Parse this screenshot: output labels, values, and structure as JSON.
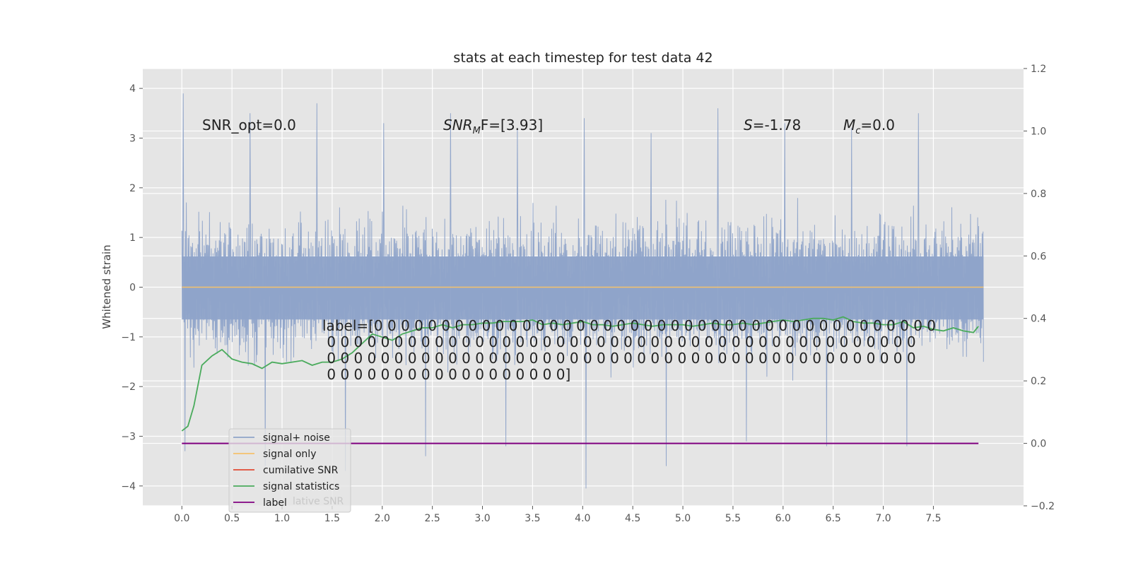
{
  "chart_data": {
    "type": "line",
    "title": "stats at each timestep for test data 42",
    "xlabel": "",
    "ylabel": "Whitened strain",
    "y2label": "",
    "xlim": [
      -0.39,
      8.4
    ],
    "ylim": [
      -4.4,
      4.4
    ],
    "y2lim": [
      -0.2,
      1.2
    ],
    "x_ticks": [
      "0.0",
      "0.5",
      "1.0",
      "1.5",
      "2.0",
      "2.5",
      "3.0",
      "3.5",
      "4.0",
      "4.5",
      "5.0",
      "5.5",
      "6.0",
      "6.5",
      "7.0",
      "7.5"
    ],
    "y_ticks": [
      "−4",
      "−3",
      "−2",
      "−1",
      "0",
      "1",
      "2",
      "3",
      "4"
    ],
    "y2_ticks": [
      "−0.2",
      "0.0",
      "0.2",
      "0.4",
      "0.6",
      "0.8",
      "1.0",
      "1.2"
    ],
    "grid": true,
    "legend_position": "lower-left",
    "colors": {
      "plot_bg": "#e5e5e5",
      "grid": "#ffffff",
      "noise": "#8ea3c9",
      "signal": "#f5c16c",
      "snr": "#e24a33",
      "stats": "#4aab5c",
      "label": "#800080"
    },
    "annotations": {
      "snr_opt": "SNR_opt=0.0",
      "snr_mf_base": "SNR",
      "snr_mf_sub": "M",
      "snr_mf_rest": "F=[3.93]",
      "s_italic": "S",
      "s_value": "=-1.78",
      "mc_base": "M",
      "mc_sub": "c",
      "mc_value": "=0.0",
      "label_lines": [
        "label=[0 0 0 0 0 0 0 0 0 0 0 0 0 0 0 0 0 0 0 0 0 0 0 0 0 0 0 0 0 0 0 0 0 0 0 0 0 0 0 0 0 0",
        " 0 0 0 0 0 0 0 0 0 0 0 0 0 0 0 0 0 0 0 0 0 0 0 0 0 0 0 0 0 0 0 0 0 0 0 0 0 0 0 0 0 0 0 0",
        " 0 0 0 0 0 0 0 0 0 0 0 0 0 0 0 0 0 0 0 0 0 0 0 0 0 0 0 0 0 0 0 0 0 0 0 0 0 0 0 0 0 0 0 0",
        " 0 0 0 0 0 0 0 0 0 0 0 0 0 0 0 0 0 0]"
      ]
    },
    "legend": [
      {
        "label": "signal+ noise",
        "color": "#8ea3c9"
      },
      {
        "label": "signal only",
        "color": "#f5c16c"
      },
      {
        "label": "cumilative SNR",
        "color": "#e24a33"
      },
      {
        "label": "signal statistics",
        "color": "#4aab5c"
      },
      {
        "label": "label",
        "color": "#800080"
      }
    ],
    "legend_ghost_text": "lative SNR",
    "series": [
      {
        "name": "signal+ noise",
        "axis": "left",
        "x_start": 0.0,
        "x_end": 8.0,
        "band_min": -2.0,
        "band_max": 1.9,
        "peak_values": [
          3.9,
          3.5,
          3.7,
          3.3,
          3.5,
          3.2,
          3.4,
          3.1,
          3.6,
          3.3,
          3.2,
          3.5
        ],
        "trough_values": [
          -3.3,
          -3.6,
          -3.7,
          -3.4,
          -3.2,
          -4.05,
          -3.6,
          -3.1,
          -3.2,
          -3.2
        ]
      },
      {
        "name": "signal only",
        "axis": "left",
        "x": [
          0.0,
          8.0
        ],
        "y": [
          0.0,
          0.0
        ]
      },
      {
        "name": "signal statistics",
        "axis": "right",
        "x": [
          0.0,
          0.06,
          0.12,
          0.2,
          0.3,
          0.4,
          0.5,
          0.6,
          0.7,
          0.8,
          0.9,
          1.0,
          1.1,
          1.2,
          1.3,
          1.4,
          1.5,
          1.6,
          1.7,
          1.8,
          1.9,
          2.0,
          2.1,
          2.2,
          2.3,
          2.4,
          2.5,
          2.6,
          2.7,
          2.8,
          2.9,
          3.0,
          3.1,
          3.2,
          3.3,
          3.4,
          3.5,
          3.6,
          3.7,
          3.8,
          3.9,
          4.0,
          4.1,
          4.2,
          4.3,
          4.4,
          4.5,
          4.6,
          4.7,
          4.8,
          4.9,
          5.0,
          5.1,
          5.2,
          5.3,
          5.4,
          5.5,
          5.6,
          5.7,
          5.8,
          5.9,
          6.0,
          6.1,
          6.2,
          6.3,
          6.4,
          6.5,
          6.6,
          6.7,
          6.8,
          6.9,
          7.0,
          7.1,
          7.2,
          7.3,
          7.4,
          7.5,
          7.6,
          7.7,
          7.8,
          7.9,
          7.95
        ],
        "y": [
          0.04,
          0.055,
          0.12,
          0.25,
          0.28,
          0.3,
          0.27,
          0.26,
          0.255,
          0.24,
          0.26,
          0.255,
          0.26,
          0.265,
          0.25,
          0.26,
          0.26,
          0.27,
          0.29,
          0.32,
          0.35,
          0.34,
          0.33,
          0.35,
          0.36,
          0.37,
          0.37,
          0.38,
          0.37,
          0.38,
          0.38,
          0.385,
          0.385,
          0.39,
          0.39,
          0.39,
          0.395,
          0.38,
          0.385,
          0.38,
          0.385,
          0.39,
          0.38,
          0.38,
          0.375,
          0.38,
          0.385,
          0.38,
          0.375,
          0.38,
          0.38,
          0.38,
          0.375,
          0.38,
          0.385,
          0.38,
          0.38,
          0.385,
          0.38,
          0.385,
          0.39,
          0.395,
          0.39,
          0.395,
          0.4,
          0.4,
          0.395,
          0.405,
          0.39,
          0.385,
          0.385,
          0.38,
          0.38,
          0.39,
          0.37,
          0.375,
          0.365,
          0.36,
          0.37,
          0.36,
          0.355,
          0.375
        ]
      },
      {
        "name": "label",
        "axis": "right",
        "x": [
          0.0,
          7.95
        ],
        "y": [
          0.0,
          0.0
        ]
      }
    ]
  }
}
